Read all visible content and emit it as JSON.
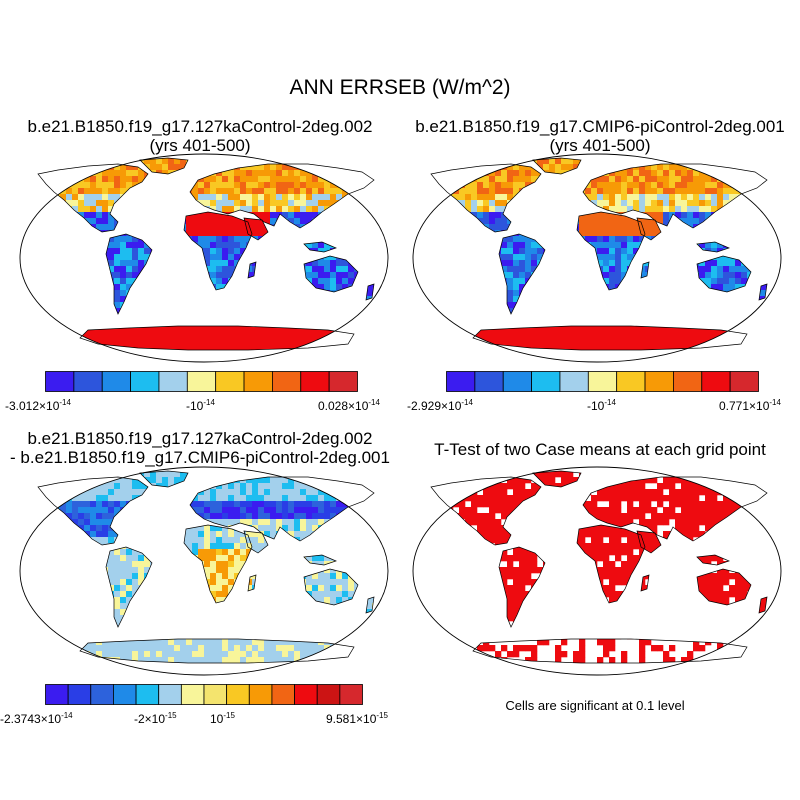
{
  "main_title": "ANN ERRSEB (W/m^2)",
  "panels": [
    {
      "title_line1": "b.e21.B1850.f19_g17.127kaControl-2deg.002",
      "title_line2": "(yrs 401-500)",
      "colorbar": {
        "colors": [
          "#3b1cf0",
          "#2d55dc",
          "#1f8ae8",
          "#1dbdf0",
          "#a3d0ec",
          "#f8f59a",
          "#f9c823",
          "#f79a06",
          "#f16514",
          "#ee0b10",
          "#d6282d"
        ],
        "labels": [
          {
            "base": "-3.012×10",
            "exp": "-14"
          },
          {
            "base": "-10",
            "exp": "-14"
          },
          {
            "base": "0.028×10",
            "exp": "-14"
          }
        ]
      }
    },
    {
      "title_line1": "b.e21.B1850.f19_g17.CMIP6-piControl-2deg.001",
      "title_line2": "(yrs 401-500)",
      "colorbar": {
        "colors": [
          "#3b1cf0",
          "#2d55dc",
          "#1f8ae8",
          "#1dbdf0",
          "#a3d0ec",
          "#f8f59a",
          "#f9c823",
          "#f79a06",
          "#f16514",
          "#ee0b10",
          "#d6282d"
        ],
        "labels": [
          {
            "base": "-2.929×10",
            "exp": "-14"
          },
          {
            "base": "-10",
            "exp": "-14"
          },
          {
            "base": "0.771×10",
            "exp": "-14"
          }
        ]
      }
    },
    {
      "title_line1": "b.e21.B1850.f19_g17.127kaControl-2deg.002",
      "title_line2": "- b.e21.B1850.f19_g17.CMIP6-piControl-2deg.001",
      "colorbar": {
        "colors": [
          "#3b1cf0",
          "#2a3ee6",
          "#2d62dc",
          "#1f8ae8",
          "#1dbdf0",
          "#a3d0ec",
          "#f8f59a",
          "#f4e46e",
          "#f9c823",
          "#f79a06",
          "#f16514",
          "#ee0b10",
          "#cc1414",
          "#d6282d"
        ],
        "labels": [
          {
            "base": "-2.3743×10",
            "exp": "-14"
          },
          {
            "base": "-2×10",
            "exp": "-15"
          },
          {
            "base": "10",
            "exp": "-15"
          },
          {
            "base": "9.581×10",
            "exp": "-15"
          }
        ]
      }
    },
    {
      "title_line1": "T-Test of two Case means at each grid point",
      "note": "Cells are significant at 0.1 level"
    }
  ]
}
